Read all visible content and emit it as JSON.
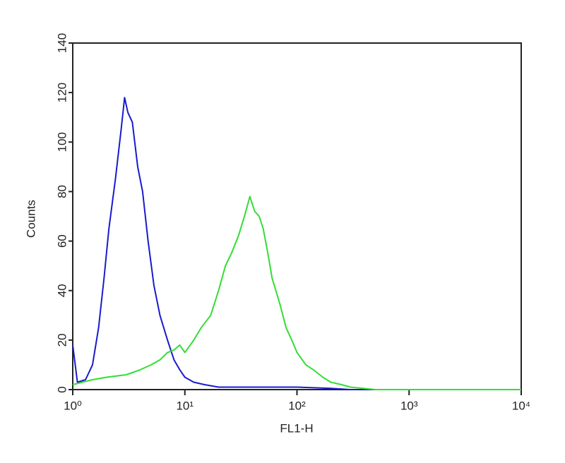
{
  "chart_data": {
    "type": "line",
    "xlabel": "FL1-H",
    "ylabel": "Counts",
    "xscale": "log",
    "xlim": [
      1,
      10000
    ],
    "xticks": [
      {
        "value": 1,
        "label": "10⁰"
      },
      {
        "value": 10,
        "label": "10¹"
      },
      {
        "value": 100,
        "label": "10²"
      },
      {
        "value": 1000,
        "label": "10³"
      },
      {
        "value": 10000,
        "label": "10⁴"
      }
    ],
    "ylim": [
      0,
      140
    ],
    "yticks": [
      0,
      20,
      40,
      60,
      80,
      100,
      120,
      140
    ],
    "series": [
      {
        "color": "#1a1acc",
        "x": [
          1.0,
          1.1,
          1.3,
          1.5,
          1.7,
          1.9,
          2.1,
          2.4,
          2.7,
          2.9,
          3.1,
          3.4,
          3.8,
          4.2,
          4.7,
          5.3,
          6,
          7,
          8,
          9,
          10,
          12,
          15,
          20,
          30,
          50,
          100,
          200,
          300,
          10000
        ],
        "values": [
          18,
          3,
          4,
          10,
          25,
          45,
          65,
          85,
          105,
          118,
          112,
          108,
          90,
          80,
          60,
          42,
          30,
          20,
          12,
          8,
          5,
          3,
          2,
          1,
          1,
          1,
          1,
          0.5,
          0,
          0
        ]
      },
      {
        "color": "#33dd33",
        "x": [
          1.0,
          1.5,
          2,
          3,
          4,
          5,
          6,
          7,
          8,
          9,
          10,
          12,
          14,
          17,
          20,
          23,
          26,
          30,
          34,
          38,
          42,
          46,
          50,
          55,
          60,
          70,
          80,
          90,
          100,
          120,
          140,
          170,
          200,
          250,
          300,
          500,
          10000
        ],
        "values": [
          2,
          4,
          5,
          6,
          8,
          10,
          12,
          15,
          16,
          18,
          15,
          20,
          25,
          30,
          40,
          50,
          55,
          62,
          70,
          78,
          72,
          70,
          65,
          55,
          45,
          35,
          25,
          20,
          15,
          10,
          8,
          5,
          3,
          2,
          1,
          0,
          0
        ]
      }
    ]
  }
}
